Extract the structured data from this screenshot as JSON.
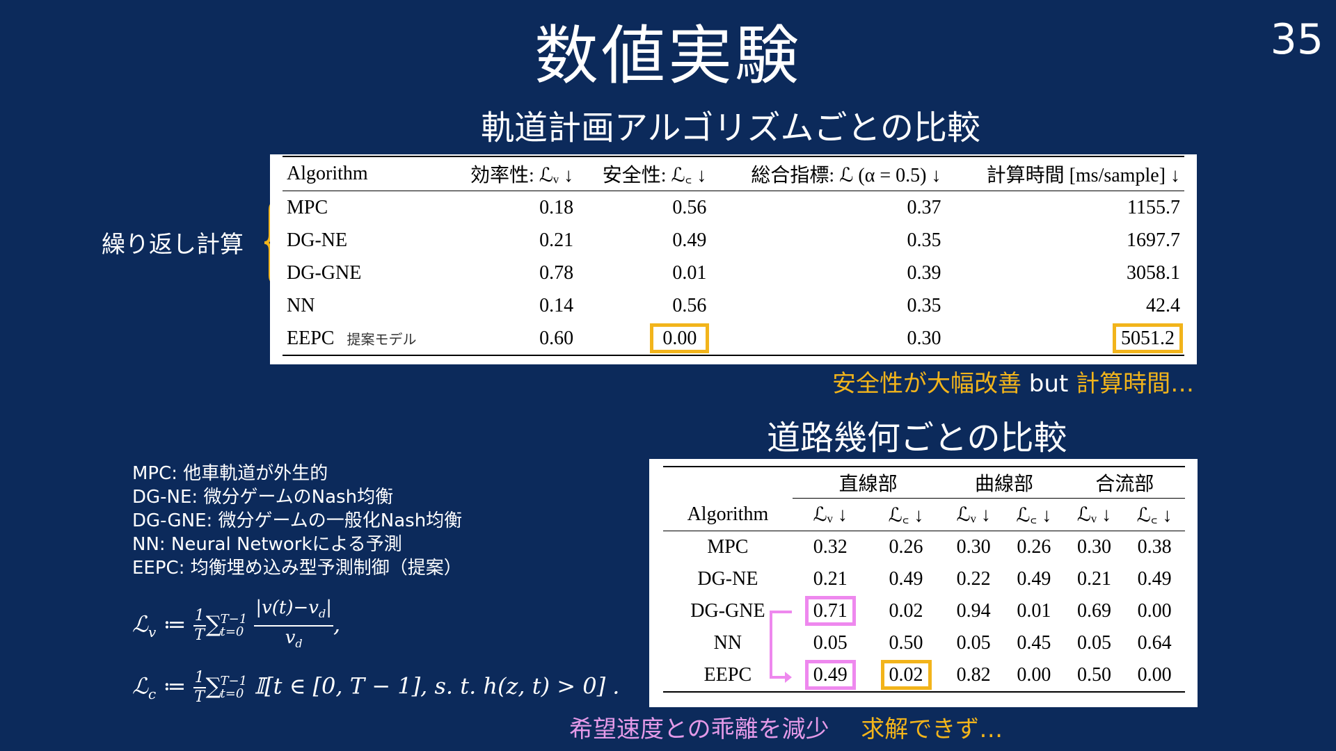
{
  "page": {
    "title": "数値実験",
    "page_number": "35"
  },
  "table1": {
    "title": "軌道計画アルゴリズムごとの比較",
    "headers": [
      "Algorithm",
      "効率性: ℒᵥ ↓",
      "安全性: ℒ꜀ ↓",
      "総合指標: ℒ (α = 0.5) ↓",
      "計算時間 [ms/sample] ↓"
    ],
    "rows": [
      {
        "algorithm": "MPC",
        "efficiency": "0.18",
        "safety": "0.56",
        "overall": "0.37",
        "time": "1155.7"
      },
      {
        "algorithm": "DG-NE",
        "efficiency": "0.21",
        "safety": "0.49",
        "overall": "0.35",
        "time": "1697.7"
      },
      {
        "algorithm": "DG-GNE",
        "efficiency": "0.78",
        "safety": "0.01",
        "overall": "0.39",
        "time": "3058.1"
      },
      {
        "algorithm": "NN",
        "efficiency": "0.14",
        "safety": "0.56",
        "overall": "0.35",
        "time": "42.4"
      },
      {
        "algorithm": "EEPC",
        "note": "提案モデル",
        "efficiency": "0.60",
        "safety": "0.00",
        "overall": "0.30",
        "time": "5051.2"
      }
    ],
    "brace_label": "繰り返し計算",
    "annotation": {
      "part1": "安全性が大幅改善",
      "part2": " but ",
      "part3": "計算時間…"
    }
  },
  "table2": {
    "title": "道路幾何ごとの比較",
    "groups": [
      "直線部",
      "曲線部",
      "合流部"
    ],
    "algorithm_header": "Algorithm",
    "metric_headers": [
      "ℒᵥ ↓",
      "ℒ꜀ ↓",
      "ℒᵥ ↓",
      "ℒ꜀ ↓",
      "ℒᵥ ↓",
      "ℒ꜀ ↓"
    ],
    "rows": [
      {
        "algorithm": "MPC",
        "values": [
          "0.32",
          "0.26",
          "0.30",
          "0.26",
          "0.30",
          "0.38"
        ]
      },
      {
        "algorithm": "DG-NE",
        "values": [
          "0.21",
          "0.49",
          "0.22",
          "0.49",
          "0.21",
          "0.49"
        ]
      },
      {
        "algorithm": "DG-GNE",
        "values": [
          "0.71",
          "0.02",
          "0.94",
          "0.01",
          "0.69",
          "0.00"
        ]
      },
      {
        "algorithm": "NN",
        "values": [
          "0.05",
          "0.50",
          "0.05",
          "0.45",
          "0.05",
          "0.64"
        ]
      },
      {
        "algorithm": "EEPC",
        "values": [
          "0.49",
          "0.02",
          "0.82",
          "0.00",
          "0.50",
          "0.00"
        ]
      }
    ],
    "annotation": {
      "pink": "希望速度との乖離を減少",
      "orange": "求解できず…"
    }
  },
  "definitions": [
    "MPC: 他車軌道が外生的",
    "DG-NE: 微分ゲームのNash均衡",
    "DG-GNE: 微分ゲームの一般化Nash均衡",
    "NN: Neural Networkによる予測",
    "EEPC: 均衡埋め込み型予測制御（提案）"
  ],
  "formulas": {
    "lv_lhs": "ℒ",
    "lv_sub": "v",
    "assign": " ≔ ",
    "frac_num": "1",
    "frac_den": "T",
    "sum": "∑",
    "sum_sup": "T−1",
    "sum_sub": "t=0",
    "lv_num": "|v(t)−v",
    "lv_num_sub": "d",
    "lv_num_end": "|",
    "lv_den": "v",
    "lv_den_sub": "d",
    "lv_end": ",",
    "lc_lhs": "ℒ",
    "lc_sub": "c",
    "lc_body": "𝕀[t ∈ [0, T − 1], s. t. h(z, t) > 0] ."
  },
  "colors": {
    "background": "#0c2a5b",
    "orange": "#f2b41b",
    "pink": "#ee88ee"
  }
}
